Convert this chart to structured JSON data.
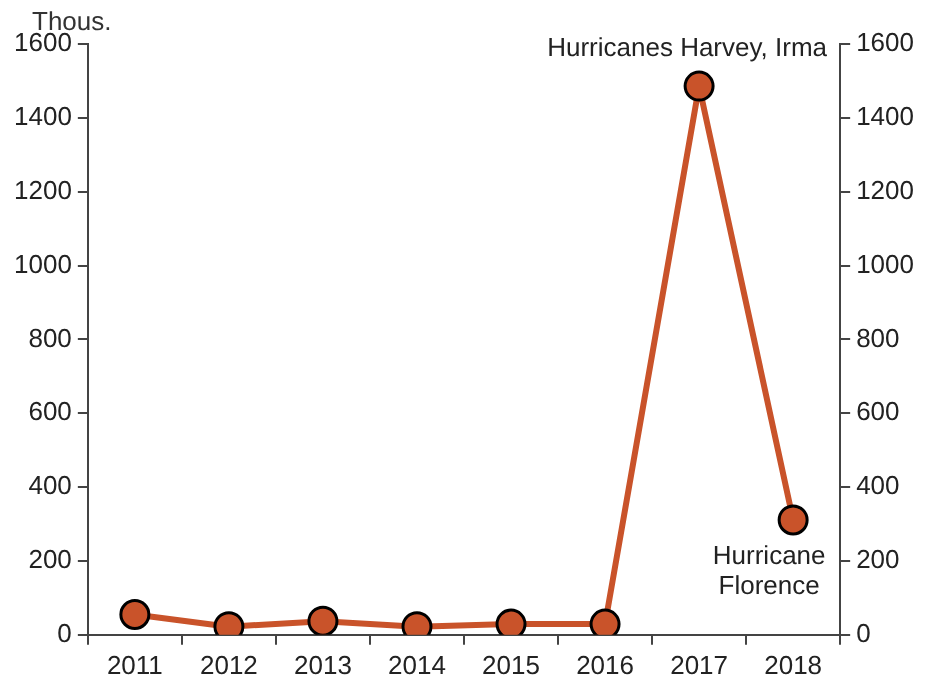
{
  "chart_data": {
    "type": "line",
    "ylabel": "Thous.",
    "categories": [
      "2011",
      "2012",
      "2013",
      "2014",
      "2015",
      "2016",
      "2017",
      "2018"
    ],
    "series": [
      {
        "color": "#c9532a",
        "values": [
          55,
          22,
          37,
          22,
          29,
          29,
          1486,
          311
        ]
      }
    ],
    "ylim": [
      0,
      1600
    ],
    "yticks": [
      0,
      200,
      400,
      600,
      800,
      1000,
      1200,
      1400,
      1600
    ],
    "y2lim": [
      0,
      1600
    ],
    "y2ticks": [
      0,
      200,
      400,
      600,
      800,
      1000,
      1200,
      1400,
      1600
    ],
    "marker": "circle",
    "line_style": "solid",
    "grid": false,
    "legend": false,
    "annotations": [
      {
        "text": "Hurricanes Harvey, Irma",
        "x": "2017",
        "y": 1486
      },
      {
        "text": "Hurricane\nFlorence",
        "x": "2018",
        "y": 311
      }
    ]
  }
}
